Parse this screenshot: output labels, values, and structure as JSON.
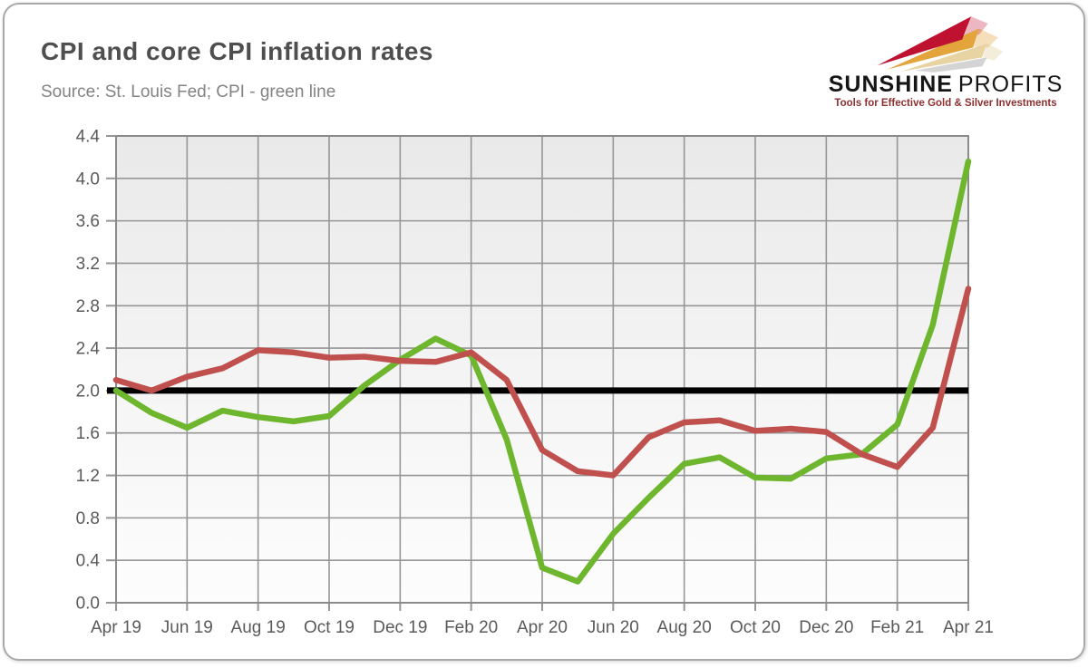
{
  "header": {
    "title": "CPI and core CPI inflation rates",
    "source_note": "Source: St. Louis Fed; CPI - green line"
  },
  "logo": {
    "brand_primary": "SUNSHINE",
    "brand_secondary": "PROFITS",
    "tagline": "Tools for Effective Gold & Silver Investments"
  },
  "chart_data": {
    "type": "line",
    "title": "CPI and core CPI inflation rates",
    "xlabel": "",
    "ylabel": "",
    "ylim": [
      0,
      4.4
    ],
    "y_tick_step": 0.4,
    "grid": true,
    "legend_position": "none",
    "x": [
      "Apr 19",
      "May 19",
      "Jun 19",
      "Jul 19",
      "Aug 19",
      "Sep 19",
      "Oct 19",
      "Nov 19",
      "Dec 19",
      "Jan 20",
      "Feb 20",
      "Mar 20",
      "Apr 20",
      "May 20",
      "Jun 20",
      "Jul 20",
      "Aug 20",
      "Sep 20",
      "Oct 20",
      "Nov 20",
      "Dec 20",
      "Jan 21",
      "Feb 21",
      "Mar 21",
      "Apr 21"
    ],
    "x_tick_labels": [
      "Apr 19",
      "Jun 19",
      "Aug 19",
      "Oct 19",
      "Dec 19",
      "Feb 20",
      "Apr 20",
      "Jun 20",
      "Aug 20",
      "Oct 20",
      "Dec 20",
      "Feb 21",
      "Apr 21"
    ],
    "x_tick_every": 2,
    "series": [
      {
        "name": "CPI",
        "color": "#6eb62d",
        "values": [
          2.0,
          1.79,
          1.65,
          1.81,
          1.75,
          1.71,
          1.76,
          2.05,
          2.29,
          2.49,
          2.33,
          1.54,
          0.33,
          0.2,
          0.65,
          0.99,
          1.31,
          1.37,
          1.18,
          1.17,
          1.36,
          1.4,
          1.68,
          2.62,
          4.16
        ]
      },
      {
        "name": "Core CPI",
        "color": "#c0504d",
        "values": [
          2.1,
          2.0,
          2.13,
          2.21,
          2.38,
          2.36,
          2.31,
          2.32,
          2.28,
          2.27,
          2.36,
          2.1,
          1.44,
          1.24,
          1.2,
          1.56,
          1.7,
          1.72,
          1.62,
          1.64,
          1.61,
          1.4,
          1.28,
          1.65,
          2.96
        ]
      }
    ],
    "reference_line": {
      "value": 2.0,
      "color": "#000000"
    }
  },
  "style": {
    "grid_color": "#969696",
    "border_color": "#8b8b8b",
    "tick_label_color": "#5a5a5a"
  }
}
